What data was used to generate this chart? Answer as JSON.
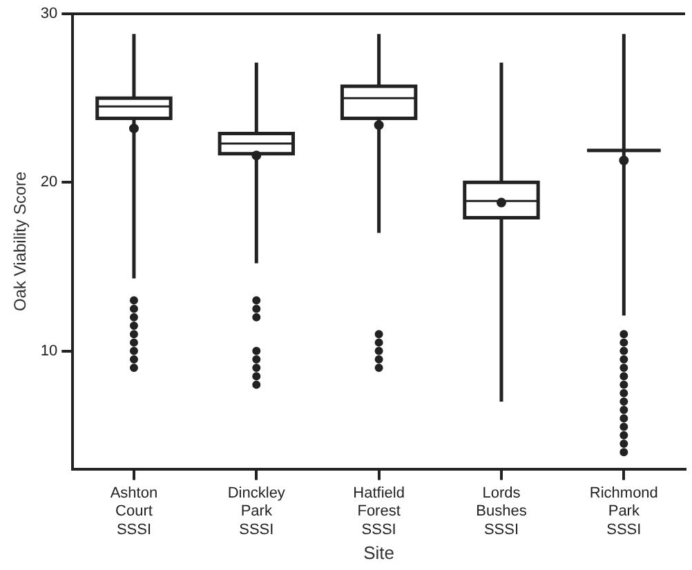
{
  "chart_data": {
    "type": "box",
    "xlabel": "Site",
    "ylabel": "Oak Viability Score",
    "categories": [
      "Ashton Court SSSI",
      "Dinckley Park SSSI",
      "Hatfield Forest SSSI",
      "Lords Bushes SSSI",
      "Richmond Park SSSI"
    ],
    "ylim": [
      3,
      30
    ],
    "yticks": [
      10,
      20,
      30
    ],
    "grid": false,
    "legend": false,
    "color": "#222222",
    "boxes": [
      {
        "low": 14.3,
        "q1": 23.8,
        "median": 24.5,
        "q3": 25,
        "high": 28.8,
        "mean": 23.2,
        "outliers": [
          13,
          12.5,
          12,
          11.5,
          11,
          10.5,
          10,
          9.5,
          9
        ]
      },
      {
        "low": 15.2,
        "q1": 21.7,
        "median": 22.3,
        "q3": 22.9,
        "high": 27.1,
        "mean": 21.6,
        "outliers": [
          13,
          12.5,
          12,
          10,
          9.5,
          9,
          8.5,
          8
        ]
      },
      {
        "low": 17,
        "q1": 23.8,
        "median": 25,
        "q3": 25.7,
        "high": 28.8,
        "mean": 23.4,
        "outliers": [
          11,
          10.5,
          10,
          9.5,
          9
        ]
      },
      {
        "low": 7,
        "q1": 17.9,
        "median": 18.9,
        "q3": 20,
        "high": 27.1,
        "mean": 18.8
      },
      {
        "low": 12.1,
        "q1": 21.9,
        "median": 21.9,
        "q3": 21.9,
        "high": 28.8,
        "mean": 21.3,
        "outliers": [
          11,
          10.5,
          10,
          9.5,
          9,
          8.5,
          8,
          7.5,
          7,
          6.5,
          6,
          5.5,
          5,
          4.5,
          4
        ]
      }
    ]
  }
}
